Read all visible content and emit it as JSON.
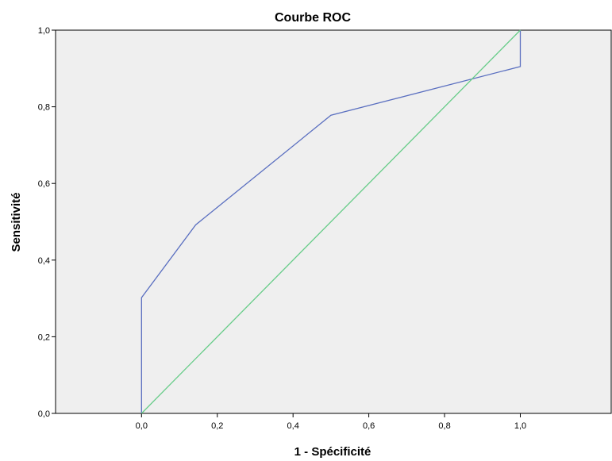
{
  "chart_data": {
    "type": "line",
    "title": "Courbe ROC",
    "xlabel": "1 - Spécificité",
    "ylabel": "Sensitivité",
    "xlim": [
      -0.227,
      1.24
    ],
    "ylim": [
      0,
      1
    ],
    "x_ticks": [
      "0,0",
      "0,2",
      "0,4",
      "0,6",
      "0,8",
      "1,0"
    ],
    "x_tick_values": [
      0,
      0.2,
      0.4,
      0.6,
      0.8,
      1.0
    ],
    "y_ticks": [
      "0,0",
      "0,2",
      "0,4",
      "0,6",
      "0,8",
      "1,0"
    ],
    "y_tick_values": [
      0,
      0.2,
      0.4,
      0.6,
      0.8,
      1.0
    ],
    "grid": false,
    "legend": "none",
    "plot_background": "#efefef",
    "series": [
      {
        "color": "#5a6fc0",
        "points": [
          [
            0,
            0
          ],
          [
            0,
            0.302
          ],
          [
            0.143,
            0.492
          ],
          [
            0.5,
            0.778
          ],
          [
            1.0,
            0.905
          ],
          [
            1.0,
            1.0
          ]
        ]
      },
      {
        "color": "#66cc88",
        "points": [
          [
            0,
            0
          ],
          [
            1.0,
            1.0
          ]
        ]
      }
    ]
  }
}
